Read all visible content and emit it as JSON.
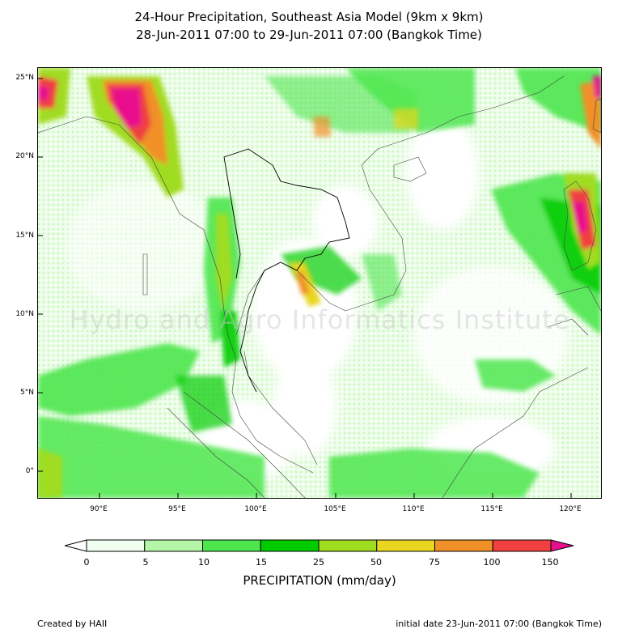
{
  "title": {
    "line1": "24-Hour Precipitation, Southeast Asia Model (9km x 9km)",
    "line2": "28-Jun-2011 07:00 to 29-Jun-2011 07:00 (Bangkok Time)"
  },
  "map": {
    "watermark": "Hydro and Agro Informatics Institute",
    "lat_labels": [
      "25°N",
      "20°N",
      "15°N",
      "10°N",
      "5°N",
      "0°"
    ],
    "lon_labels": [
      "90°E",
      "95°E",
      "100°E",
      "105°E",
      "110°E",
      "115°E",
      "120°E"
    ],
    "extent": {
      "lon_min": 86.2,
      "lon_max": 122.0,
      "lat_min": -1.8,
      "lat_max": 25.6
    }
  },
  "legend": {
    "title": "PRECIPITATION (mm/day)",
    "thresholds": [
      "0",
      "5",
      "10",
      "15",
      "25",
      "50",
      "75",
      "100",
      "150"
    ],
    "colors": {
      "below": "#ffffff",
      "bins": [
        "#f0fff0",
        "#b4f5a8",
        "#4ee64e",
        "#00cc00",
        "#a0dc20",
        "#e8d620",
        "#f09028",
        "#f04040"
      ],
      "above": "#e8108c"
    }
  },
  "footer": {
    "left": "Created by HAII",
    "right": "initial date 23-Jun-2011 07:00 (Bangkok Time)"
  }
}
